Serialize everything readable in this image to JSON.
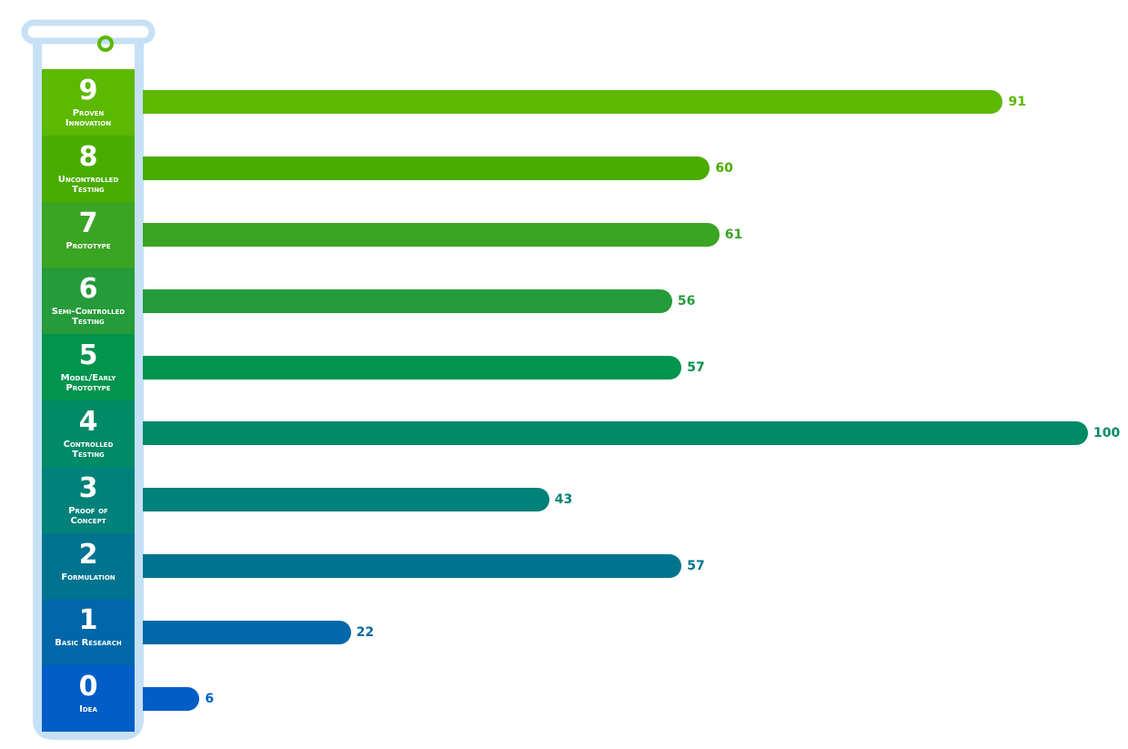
{
  "chart_data": {
    "type": "bar",
    "orientation": "horizontal",
    "levels": [
      9,
      8,
      7,
      6,
      5,
      4,
      3,
      2,
      1,
      0
    ],
    "categories": [
      "Proven\nInnovation",
      "Uncontrolled\nTesting",
      "Prototype",
      "Semi-Controlled\nTesting",
      "Model/Early\nPrototype",
      "Controlled\nTesting",
      "Proof of\nConcept",
      "Formulation",
      "Basic Research",
      "Idea"
    ],
    "values": [
      91,
      60,
      61,
      56,
      57,
      100,
      43,
      57,
      22,
      6
    ],
    "colors": [
      "#5cb800",
      "#4aac00",
      "#3aa423",
      "#259b3a",
      "#00944d",
      "#008a66",
      "#008179",
      "#00748e",
      "#0068a8",
      "#005ec6"
    ]
  }
}
